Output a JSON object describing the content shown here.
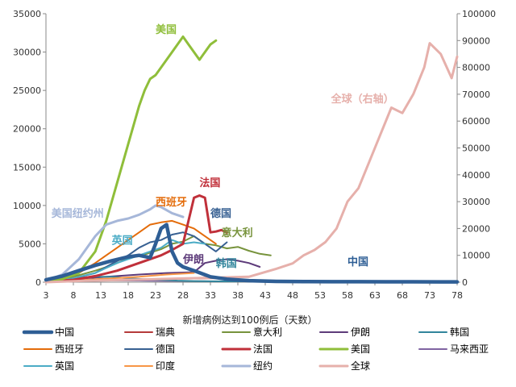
{
  "chart_data": {
    "type": "line",
    "title": "",
    "xlabel": "新增病例达到100例后（天数）",
    "ylabel": "",
    "x_ticks": [
      3,
      8,
      13,
      18,
      23,
      28,
      33,
      38,
      43,
      48,
      53,
      58,
      63,
      68,
      73,
      78
    ],
    "xlim": [
      3,
      78
    ],
    "y_ticks_left": [
      "0",
      "5000",
      "10000",
      "15000",
      "20000",
      "25000",
      "30000",
      "35000"
    ],
    "y_ticks_right": [
      "0",
      "10000",
      "20000",
      "30000",
      "40000",
      "50000",
      "60000",
      "70000",
      "80000",
      "90000",
      "100000"
    ],
    "ylim_left": [
      0,
      35000
    ],
    "ylim_right": [
      0,
      100000
    ],
    "grid": false,
    "legend_position": "bottom",
    "series": [
      {
        "name": "中国",
        "color": "#2e5e95",
        "axis": "left",
        "width": 4.5,
        "x": [
          3,
          6,
          9,
          12,
          15,
          18,
          20,
          22,
          23,
          24,
          25,
          26,
          27,
          28,
          30,
          33,
          36,
          40,
          45,
          50,
          55,
          60,
          65,
          70,
          75,
          78
        ],
        "y": [
          300,
          800,
          1500,
          2200,
          2800,
          3300,
          3500,
          3200,
          5000,
          7000,
          7500,
          4000,
          2500,
          2000,
          1500,
          700,
          400,
          200,
          100,
          80,
          60,
          60,
          50,
          50,
          40,
          40
        ]
      },
      {
        "name": "瑞典",
        "color": "#b53a3a",
        "axis": "left",
        "width": 1.5,
        "x": [
          3,
          10,
          20,
          30,
          36
        ],
        "y": [
          30,
          150,
          350,
          450,
          500
        ]
      },
      {
        "name": "意大利",
        "color": "#77933c",
        "axis": "left",
        "width": 2,
        "x": [
          3,
          6,
          9,
          12,
          15,
          18,
          21,
          24,
          26,
          28,
          30,
          32,
          34,
          36,
          38,
          40,
          42,
          44
        ],
        "y": [
          150,
          400,
          900,
          1500,
          2200,
          3100,
          3600,
          4300,
          5000,
          5300,
          6000,
          5000,
          4800,
          4400,
          4600,
          4100,
          3700,
          3500
        ]
      },
      {
        "name": "伊朗",
        "color": "#5d3b7a",
        "axis": "left",
        "width": 2,
        "x": [
          3,
          10,
          20,
          25,
          30,
          32,
          34,
          36,
          38,
          40,
          42
        ],
        "y": [
          100,
          500,
          1000,
          1200,
          1300,
          2500,
          2800,
          3000,
          2800,
          2500,
          2000
        ]
      },
      {
        "name": "韩国",
        "color": "#31859c",
        "axis": "left",
        "width": 2,
        "x": [
          3,
          6,
          9,
          12,
          15,
          18,
          21,
          24,
          27,
          30,
          33,
          36,
          40,
          45,
          50,
          55
        ],
        "y": [
          120,
          300,
          600,
          700,
          700,
          500,
          400,
          300,
          200,
          150,
          120,
          100,
          100,
          80,
          80,
          60
        ]
      },
      {
        "name": "西班牙",
        "color": "#e46c0a",
        "axis": "left",
        "width": 2,
        "x": [
          3,
          6,
          9,
          12,
          15,
          18,
          20,
          22,
          24,
          26,
          28,
          30,
          32,
          34
        ],
        "y": [
          200,
          600,
          1200,
          2500,
          4000,
          5500,
          6500,
          7500,
          7800,
          8000,
          7500,
          7000,
          6000,
          5000
        ]
      },
      {
        "name": "德国",
        "color": "#376092",
        "axis": "left",
        "width": 2,
        "x": [
          3,
          8,
          12,
          15,
          18,
          20,
          22,
          24,
          26,
          28,
          30,
          32,
          34,
          36
        ],
        "y": [
          150,
          500,
          1200,
          2400,
          3500,
          4500,
          5200,
          5500,
          6200,
          6500,
          6000,
          5000,
          4000,
          5200
        ]
      },
      {
        "name": "法国",
        "color": "#c0303a",
        "axis": "left",
        "width": 3,
        "x": [
          3,
          8,
          12,
          16,
          20,
          24,
          26,
          28,
          30,
          31,
          32,
          33,
          34,
          35,
          36
        ],
        "y": [
          100,
          300,
          800,
          1500,
          2500,
          3500,
          4200,
          5000,
          11000,
          11300,
          11000,
          6500,
          6600,
          6800,
          6500
        ]
      },
      {
        "name": "美国",
        "color": "#8fbe3a",
        "axis": "left",
        "width": 3,
        "x": [
          3,
          6,
          9,
          12,
          14,
          16,
          18,
          20,
          21,
          22,
          23,
          24,
          26,
          28,
          29,
          30,
          31,
          32,
          33,
          34
        ],
        "y": [
          100,
          400,
          1200,
          4000,
          8000,
          13000,
          18000,
          23000,
          25000,
          26500,
          27000,
          28000,
          30000,
          32000,
          31000,
          30000,
          29000,
          30000,
          31000,
          31500
        ]
      },
      {
        "name": "马来西亚",
        "color": "#8064a2",
        "axis": "left",
        "width": 1.5,
        "x": [
          3,
          10,
          15,
          20,
          25,
          30,
          35
        ],
        "y": [
          80,
          150,
          200,
          180,
          150,
          130,
          100
        ]
      },
      {
        "name": "英国",
        "color": "#4bacc6",
        "axis": "left",
        "width": 2,
        "x": [
          3,
          8,
          12,
          16,
          20,
          24,
          26,
          28,
          30,
          32
        ],
        "y": [
          150,
          500,
          1200,
          2500,
          3500,
          4500,
          5500,
          5000,
          5200,
          5000
        ]
      },
      {
        "name": "印度",
        "color": "#f79646",
        "axis": "left",
        "width": 2,
        "x": [
          3,
          10,
          15,
          20,
          25,
          30
        ],
        "y": [
          60,
          300,
          500,
          700,
          1000,
          1200
        ]
      },
      {
        "name": "纽约",
        "color": "#a6b7d9",
        "axis": "left",
        "width": 3,
        "x": [
          3,
          6,
          9,
          12,
          14,
          16,
          18,
          20,
          22,
          23,
          24,
          26,
          28
        ],
        "y": [
          200,
          1000,
          3000,
          6000,
          7500,
          8000,
          8300,
          8800,
          9500,
          10000,
          9800,
          9000,
          8500
        ]
      },
      {
        "name": "全球",
        "color": "#e6b0ab",
        "axis": "right",
        "width": 3,
        "x": [
          3,
          10,
          20,
          30,
          40,
          45,
          48,
          50,
          52,
          54,
          56,
          58,
          60,
          62,
          64,
          66,
          68,
          70,
          72,
          73,
          75,
          77,
          78
        ],
        "y": [
          0,
          500,
          1000,
          1500,
          2000,
          5000,
          7000,
          10000,
          12000,
          15000,
          20000,
          30000,
          35000,
          45000,
          55000,
          65000,
          63000,
          70000,
          80000,
          89000,
          85000,
          76000,
          84000
        ]
      }
    ],
    "annotations": [
      {
        "text": "美国",
        "x": 23,
        "y": 32500,
        "axis": "left",
        "color": "#8fbe3a"
      },
      {
        "text": "全球（右轴）",
        "x": 55,
        "y": 67000,
        "axis": "right",
        "color": "#e6b0ab"
      },
      {
        "text": "法国",
        "x": 31,
        "y": 12500,
        "axis": "left",
        "color": "#c0303a"
      },
      {
        "text": "西班牙",
        "x": 23,
        "y": 10000,
        "axis": "left",
        "color": "#e46c0a"
      },
      {
        "text": "德国",
        "x": 33,
        "y": 8500,
        "axis": "left",
        "color": "#376092"
      },
      {
        "text": "美国纽约州",
        "x": 4,
        "y": 8500,
        "axis": "left",
        "color": "#a6b7d9"
      },
      {
        "text": "意大利",
        "x": 35,
        "y": 6000,
        "axis": "left",
        "color": "#77933c"
      },
      {
        "text": "英国",
        "x": 15,
        "y": 5000,
        "axis": "left",
        "color": "#4bacc6"
      },
      {
        "text": "伊朗",
        "x": 28,
        "y": 2500,
        "axis": "left",
        "color": "#5d3b7a"
      },
      {
        "text": "韩国",
        "x": 34,
        "y": 2000,
        "axis": "left",
        "color": "#31859c"
      },
      {
        "text": "中国",
        "x": 58,
        "y": 2200,
        "axis": "left",
        "color": "#2e5e95"
      }
    ]
  }
}
